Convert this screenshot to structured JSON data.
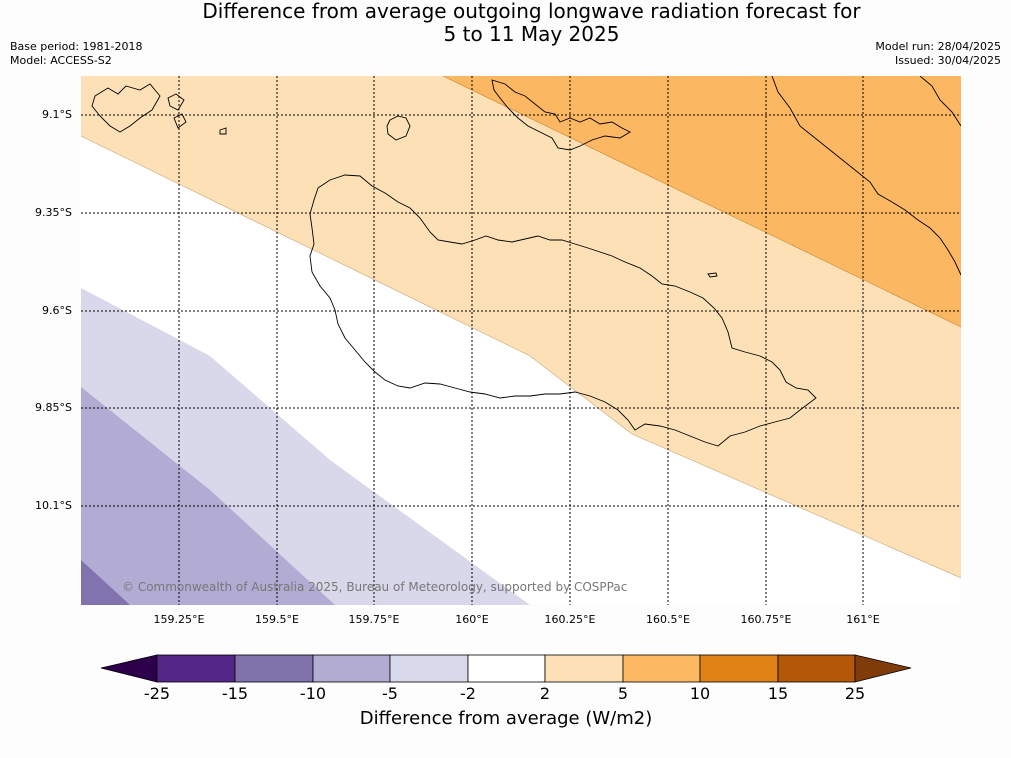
{
  "header": {
    "title_line1": "Difference from average outgoing longwave radiation forecast for",
    "title_line2": "5 to 11 May 2025",
    "base_period": "Base period: 1981-2018",
    "model": "Model: ACCESS-S2",
    "model_run": "Model run: 28/04/2025",
    "issued": "Issued: 30/04/2025"
  },
  "map": {
    "copyright": "© Commonwealth of Australia 2025, Bureau of Meteorology, supported by COSPPac",
    "lat_labels": [
      "9.1°S",
      "9.35°S",
      "9.6°S",
      "9.85°S",
      "10.1°S"
    ],
    "lon_labels": [
      "159.25°E",
      "159.5°E",
      "159.75°E",
      "160°E",
      "160.25°E",
      "160.5°E",
      "160.75°E",
      "161°E"
    ],
    "colors": {
      "above_2_5": "#fde0b6",
      "above_5_10": "#fbb761",
      "below_5_10": "#d8d8ea",
      "below_10_15": "#b2abd3",
      "below_15_25": "#8173ae",
      "neutral": "#ffffff"
    }
  },
  "colorbar": {
    "title": "Difference from average (W/m2)",
    "ticks": [
      "-25",
      "-15",
      "-10",
      "-5",
      "-2",
      "2",
      "5",
      "10",
      "15",
      "25"
    ],
    "colors": [
      "#2d004b",
      "#542788",
      "#8073ac",
      "#b2abd2",
      "#d8daeb",
      "#ffffff",
      "#fee0b6",
      "#fdb863",
      "#e08214",
      "#b35806",
      "#7f3b08"
    ]
  }
}
